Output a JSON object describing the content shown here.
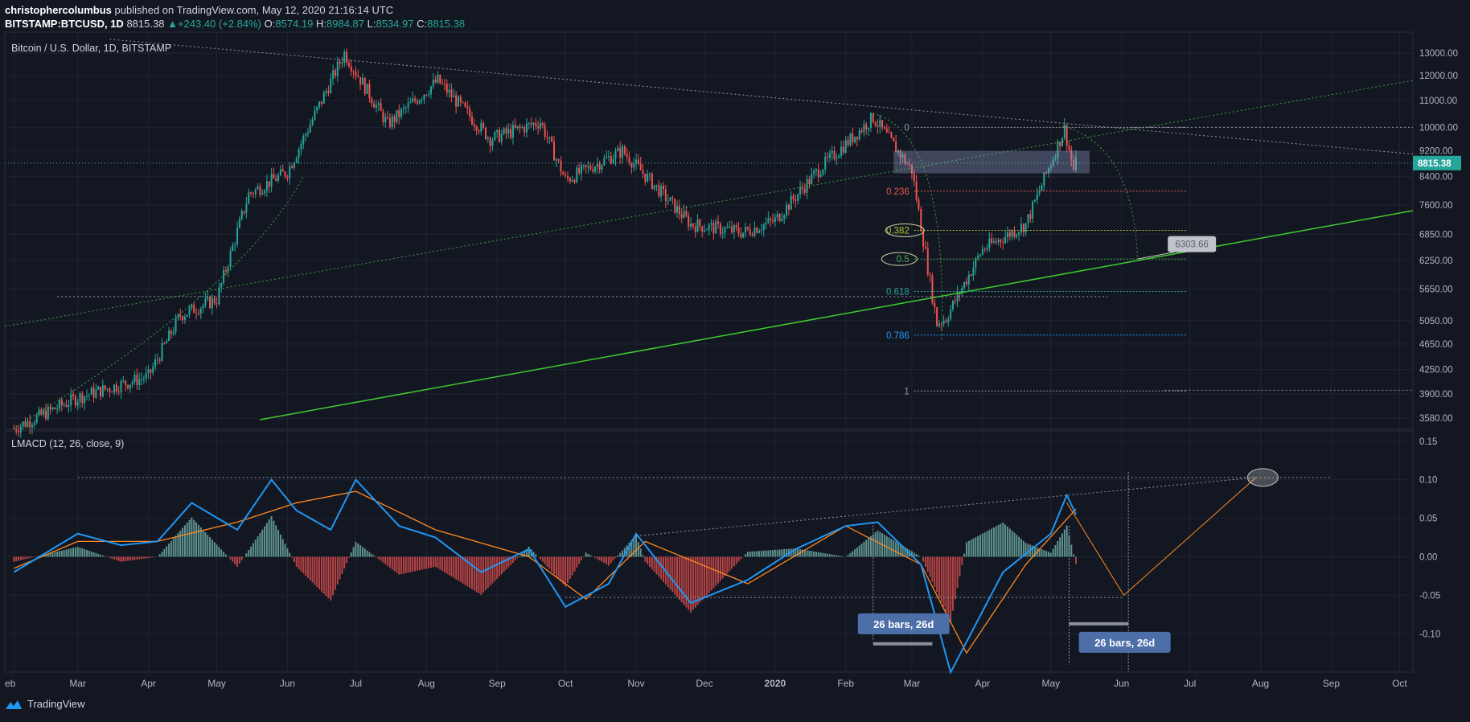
{
  "header": {
    "author": "christophercolumbus",
    "published": " published on TradingView.com, May 12, 2020 21:16:14 UTC",
    "symbol": "BITSTAMP:BTCUSD, 1D",
    "last": "8815.38",
    "change": "+243.40 (+2.84%)",
    "o_label": "O:",
    "o": "8574.19",
    "h_label": "H:",
    "h": "8984.87",
    "l_label": "L:",
    "l": "8534.97",
    "c_label": "C:",
    "c": "8815.38"
  },
  "footer": {
    "brand": "TradingView"
  },
  "colors": {
    "bg": "#131722",
    "up": "#26a69a",
    "down": "#ef5350",
    "grid": "#1f2433",
    "macd": "#2196f3",
    "signal": "#ff8a1f",
    "trend": "#3fcc2f",
    "label": "#4d6fa8"
  },
  "chart_data": [
    {
      "type": "candlestick",
      "title": "Bitcoin / U.S. Dollar, 1D, BITSTAMP",
      "x_ticks": [
        "eb",
        "Mar",
        "Apr",
        "May",
        "Jun",
        "Jul",
        "Aug",
        "Sep",
        "Oct",
        "Nov",
        "Dec",
        "2020",
        "Feb",
        "Mar",
        "Apr",
        "May",
        "Jun",
        "Jul",
        "Aug",
        "Sep",
        "Oct"
      ],
      "y_ticks": [
        "13000.00",
        "12000.00",
        "11000.00",
        "10000.00",
        "9200.00",
        "8400.00",
        "7600.00",
        "6850.00",
        "6250.00",
        "5650.00",
        "5050.00",
        "4650.00",
        "4250.00",
        "3900.00",
        "3580.00"
      ],
      "y_scale": "log",
      "last_price": "8815.38",
      "fib_levels": [
        {
          "label": "0",
          "price": 10000
        },
        {
          "label": "0.236",
          "price": 7980
        },
        {
          "label": "0.382",
          "price": 6950
        },
        {
          "label": "0.5",
          "price": 6280
        },
        {
          "label": "0.618",
          "price": 5600
        },
        {
          "label": "0.786",
          "price": 4800
        },
        {
          "label": "1",
          "price": 3940
        }
      ],
      "callout": "6303.66",
      "series": [
        {
          "name": "close",
          "x": [
            "2019-02-01",
            "2019-03-01",
            "2019-04-01",
            "2019-04-15",
            "2019-05-01",
            "2019-05-15",
            "2019-06-01",
            "2019-06-26",
            "2019-07-15",
            "2019-08-06",
            "2019-08-29",
            "2019-09-20",
            "2019-10-01",
            "2019-10-26",
            "2019-11-25",
            "2019-12-18",
            "2020-01-01",
            "2020-01-20",
            "2020-02-13",
            "2020-03-01",
            "2020-03-12",
            "2020-03-16",
            "2020-04-01",
            "2020-04-20",
            "2020-05-07",
            "2020-05-11",
            "2020-05-12"
          ],
          "y": [
            3450,
            3850,
            4150,
            5150,
            5450,
            7900,
            8550,
            13000,
            10100,
            11800,
            9600,
            10200,
            8300,
            9200,
            7100,
            6900,
            7200,
            8600,
            10350,
            8600,
            5000,
            5100,
            6500,
            7100,
            9950,
            8600,
            8815
          ]
        }
      ]
    },
    {
      "type": "line",
      "title": "LMACD (12, 26, close, 9)",
      "y_ticks": [
        "0.15",
        "0.10",
        "0.05",
        "0.00",
        "-0.05",
        "-0.10"
      ],
      "ylim": [
        -0.15,
        0.15
      ],
      "annotations": [
        "26 bars, 26d",
        "26 bars, 26d"
      ],
      "series": [
        {
          "name": "macd",
          "x": [
            "2019-02-01",
            "2019-03-01",
            "2019-03-20",
            "2019-04-05",
            "2019-04-20",
            "2019-05-10",
            "2019-05-25",
            "2019-06-05",
            "2019-06-20",
            "2019-07-01",
            "2019-07-20",
            "2019-08-05",
            "2019-08-25",
            "2019-09-15",
            "2019-10-01",
            "2019-10-20",
            "2019-11-01",
            "2019-11-25",
            "2019-12-20",
            "2020-01-10",
            "2020-02-01",
            "2020-02-15",
            "2020-03-05",
            "2020-03-18",
            "2020-04-10",
            "2020-05-01",
            "2020-05-08",
            "2020-05-12"
          ],
          "y": [
            -0.02,
            0.03,
            0.015,
            0.02,
            0.07,
            0.035,
            0.1,
            0.06,
            0.035,
            0.1,
            0.04,
            0.025,
            -0.02,
            0.01,
            -0.065,
            -0.035,
            0.03,
            -0.06,
            -0.03,
            0.01,
            0.04,
            0.045,
            -0.01,
            -0.15,
            -0.02,
            0.03,
            0.08,
            0.055
          ]
        },
        {
          "name": "signal",
          "x": [
            "2019-02-01",
            "2019-03-01",
            "2019-04-05",
            "2019-05-10",
            "2019-06-05",
            "2019-07-01",
            "2019-08-05",
            "2019-09-15",
            "2019-10-10",
            "2019-11-05",
            "2019-12-20",
            "2020-02-01",
            "2020-03-05",
            "2020-03-25",
            "2020-04-20",
            "2020-05-12"
          ],
          "y": [
            -0.015,
            0.02,
            0.02,
            0.045,
            0.07,
            0.085,
            0.035,
            0.0,
            -0.055,
            0.02,
            -0.035,
            0.04,
            -0.01,
            -0.125,
            -0.01,
            0.062
          ]
        }
      ]
    }
  ]
}
